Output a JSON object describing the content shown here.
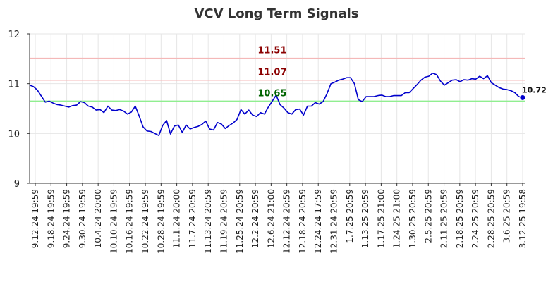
{
  "chart_data": {
    "type": "line",
    "title": "VCV Long Term Signals",
    "xlabel": "",
    "ylabel": "",
    "ylim": [
      9,
      12
    ],
    "y_ticks": [
      "9",
      "10",
      "11",
      "12"
    ],
    "grid": true,
    "x_tick_labels": [
      "9.12.24 19:59",
      "9.18.24 19:59",
      "9.24.24 19:59",
      "9.30.24 19:59",
      "10.4.24 20:00",
      "10.10.24 19:59",
      "10.16.24 19:59",
      "10.22.24 19:59",
      "10.28.24 19:59",
      "11.1.24 20:00",
      "11.7.24 20:59",
      "11.13.24 20:59",
      "11.19.24 20:59",
      "11.25.24 20:59",
      "12.2.24 20:59",
      "12.6.24 21:00",
      "12.12.24 20:59",
      "12.18.24 20:59",
      "12.24.24 17:59",
      "12.31.24 20:59",
      "1.7.25 20:59",
      "1.13.25 20:59",
      "1.17.25 21:00",
      "1.24.25 21:00",
      "1.30.25 20:59",
      "2.5.25 20:59",
      "2.11.25 20:59",
      "2.18.25 20:59",
      "2.24.25 20:59",
      "2.28.25 20:59",
      "3.6.25 20:59",
      "3.12.25 19:58"
    ],
    "series": [
      {
        "color": "#0000cc",
        "values": [
          10.97,
          10.94,
          10.87,
          10.75,
          10.63,
          10.65,
          10.61,
          10.58,
          10.57,
          10.55,
          10.53,
          10.56,
          10.57,
          10.64,
          10.62,
          10.55,
          10.53,
          10.47,
          10.48,
          10.42,
          10.55,
          10.47,
          10.46,
          10.48,
          10.45,
          10.39,
          10.43,
          10.55,
          10.35,
          10.13,
          10.05,
          10.04,
          10.0,
          9.96,
          10.16,
          10.26,
          9.99,
          10.15,
          10.17,
          10.02,
          10.17,
          10.09,
          10.12,
          10.14,
          10.18,
          10.25,
          10.09,
          10.07,
          10.22,
          10.19,
          10.1,
          10.16,
          10.21,
          10.28,
          10.48,
          10.39,
          10.47,
          10.37,
          10.34,
          10.42,
          10.39,
          10.53,
          10.65,
          10.77,
          10.58,
          10.51,
          10.42,
          10.39,
          10.48,
          10.49,
          10.37,
          10.55,
          10.55,
          10.62,
          10.59,
          10.64,
          10.8,
          11.0,
          11.03,
          11.07,
          11.09,
          11.12,
          11.12,
          11.0,
          10.68,
          10.64,
          10.74,
          10.74,
          10.74,
          10.76,
          10.77,
          10.74,
          10.74,
          10.76,
          10.76,
          10.76,
          10.82,
          10.82,
          10.9,
          10.98,
          11.07,
          11.13,
          11.15,
          11.21,
          11.18,
          11.05,
          10.97,
          11.02,
          11.07,
          11.08,
          11.04,
          11.08,
          11.07,
          11.1,
          11.09,
          11.15,
          11.1,
          11.16,
          11.02,
          10.97,
          10.92,
          10.89,
          10.88,
          10.86,
          10.82,
          10.74,
          10.72
        ]
      }
    ],
    "reference_lines": [
      {
        "value": 11.51,
        "label": "11.51",
        "line_color": "#f4b8b8",
        "text_color": "#8b0000",
        "label_index": 62
      },
      {
        "value": 11.07,
        "label": "11.07",
        "line_color": "#f4b8b8",
        "text_color": "#8b0000",
        "label_index": 62
      },
      {
        "value": 10.65,
        "label": "10.65",
        "line_color": "#90ee90",
        "text_color": "#006400",
        "label_index": 62
      }
    ],
    "last_value_label": "10.72"
  }
}
